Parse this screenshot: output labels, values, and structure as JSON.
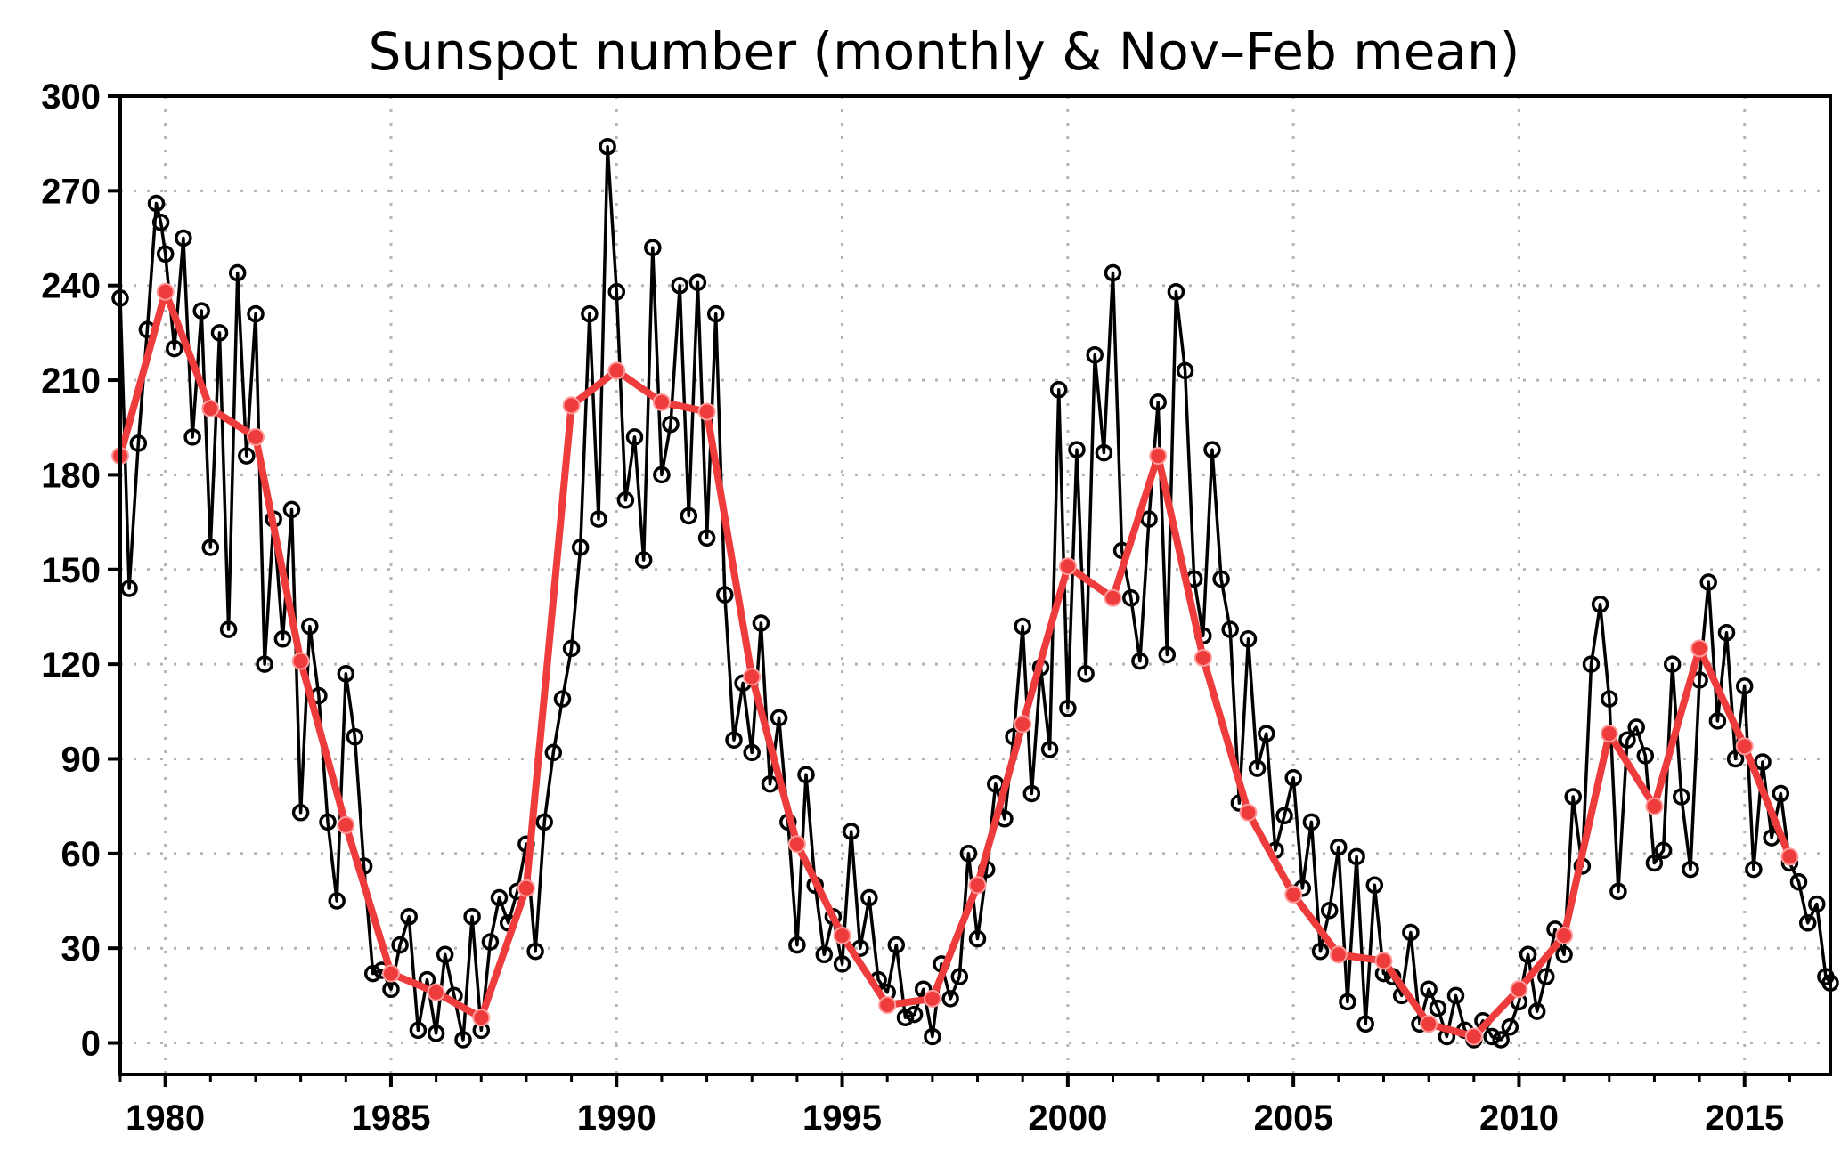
{
  "chart_data": {
    "type": "line",
    "title": "Sunspot number (monthly & Nov–Feb mean)",
    "xlabel": "",
    "ylabel": "",
    "xlim": [
      1979.0,
      2016.9
    ],
    "ylim": [
      -10,
      300
    ],
    "x_ticks": [
      1980,
      1985,
      1990,
      1995,
      2000,
      2005,
      2010,
      2015
    ],
    "x_tick_labels": [
      "1980",
      "1985",
      "1990",
      "1995",
      "2000",
      "2005",
      "2010",
      "2015"
    ],
    "y_ticks": [
      0,
      30,
      60,
      90,
      120,
      150,
      180,
      210,
      240,
      270,
      300
    ],
    "y_tick_labels": [
      "0",
      "30",
      "60",
      "90",
      "120",
      "150",
      "180",
      "210",
      "240",
      "270",
      "300"
    ],
    "grid": true,
    "series": [
      {
        "style": "thin black line with open circle markers",
        "color": "#000000",
        "points": [
          [
            1979.0,
            236
          ],
          [
            1979.2,
            144
          ],
          [
            1979.4,
            190
          ],
          [
            1979.6,
            226
          ],
          [
            1979.8,
            266
          ],
          [
            1979.9,
            260
          ],
          [
            1980.0,
            250
          ],
          [
            1980.2,
            220
          ],
          [
            1980.4,
            255
          ],
          [
            1980.6,
            192
          ],
          [
            1980.8,
            232
          ],
          [
            1981.0,
            157
          ],
          [
            1981.2,
            225
          ],
          [
            1981.4,
            131
          ],
          [
            1981.6,
            244
          ],
          [
            1981.8,
            186
          ],
          [
            1982.0,
            231
          ],
          [
            1982.2,
            120
          ],
          [
            1982.4,
            166
          ],
          [
            1982.6,
            128
          ],
          [
            1982.8,
            169
          ],
          [
            1983.0,
            73
          ],
          [
            1983.2,
            132
          ],
          [
            1983.4,
            110
          ],
          [
            1983.6,
            70
          ],
          [
            1983.8,
            45
          ],
          [
            1984.0,
            117
          ],
          [
            1984.2,
            97
          ],
          [
            1984.4,
            56
          ],
          [
            1984.6,
            22
          ],
          [
            1984.8,
            23
          ],
          [
            1985.0,
            17
          ],
          [
            1985.2,
            31
          ],
          [
            1985.4,
            40
          ],
          [
            1985.6,
            4
          ],
          [
            1985.8,
            20
          ],
          [
            1986.0,
            3
          ],
          [
            1986.2,
            28
          ],
          [
            1986.4,
            15
          ],
          [
            1986.6,
            1
          ],
          [
            1986.8,
            40
          ],
          [
            1987.0,
            4
          ],
          [
            1987.2,
            32
          ],
          [
            1987.4,
            46
          ],
          [
            1987.6,
            38
          ],
          [
            1987.8,
            48
          ],
          [
            1988.0,
            63
          ],
          [
            1988.2,
            29
          ],
          [
            1988.4,
            70
          ],
          [
            1988.6,
            92
          ],
          [
            1988.8,
            109
          ],
          [
            1989.0,
            125
          ],
          [
            1989.2,
            157
          ],
          [
            1989.4,
            231
          ],
          [
            1989.6,
            166
          ],
          [
            1989.8,
            284
          ],
          [
            1990.0,
            238
          ],
          [
            1990.2,
            172
          ],
          [
            1990.4,
            192
          ],
          [
            1990.6,
            153
          ],
          [
            1990.8,
            252
          ],
          [
            1991.0,
            180
          ],
          [
            1991.2,
            196
          ],
          [
            1991.4,
            240
          ],
          [
            1991.6,
            167
          ],
          [
            1991.8,
            241
          ],
          [
            1992.0,
            160
          ],
          [
            1992.2,
            231
          ],
          [
            1992.4,
            142
          ],
          [
            1992.6,
            96
          ],
          [
            1992.8,
            114
          ],
          [
            1993.0,
            92
          ],
          [
            1993.2,
            133
          ],
          [
            1993.4,
            82
          ],
          [
            1993.6,
            103
          ],
          [
            1993.8,
            70
          ],
          [
            1994.0,
            31
          ],
          [
            1994.2,
            85
          ],
          [
            1994.4,
            50
          ],
          [
            1994.6,
            28
          ],
          [
            1994.8,
            40
          ],
          [
            1995.0,
            25
          ],
          [
            1995.2,
            67
          ],
          [
            1995.4,
            30
          ],
          [
            1995.6,
            46
          ],
          [
            1995.8,
            20
          ],
          [
            1996.0,
            16
          ],
          [
            1996.2,
            31
          ],
          [
            1996.4,
            8
          ],
          [
            1996.6,
            9
          ],
          [
            1996.8,
            17
          ],
          [
            1997.0,
            2
          ],
          [
            1997.2,
            25
          ],
          [
            1997.4,
            14
          ],
          [
            1997.6,
            21
          ],
          [
            1997.8,
            60
          ],
          [
            1998.0,
            33
          ],
          [
            1998.2,
            55
          ],
          [
            1998.4,
            82
          ],
          [
            1998.6,
            71
          ],
          [
            1998.8,
            97
          ],
          [
            1999.0,
            132
          ],
          [
            1999.2,
            79
          ],
          [
            1999.4,
            119
          ],
          [
            1999.6,
            93
          ],
          [
            1999.8,
            207
          ],
          [
            2000.0,
            106
          ],
          [
            2000.2,
            188
          ],
          [
            2000.4,
            117
          ],
          [
            2000.6,
            218
          ],
          [
            2000.8,
            187
          ],
          [
            2001.0,
            244
          ],
          [
            2001.2,
            156
          ],
          [
            2001.4,
            141
          ],
          [
            2001.6,
            121
          ],
          [
            2001.8,
            166
          ],
          [
            2002.0,
            203
          ],
          [
            2002.2,
            123
          ],
          [
            2002.4,
            238
          ],
          [
            2002.6,
            213
          ],
          [
            2002.8,
            147
          ],
          [
            2003.0,
            129
          ],
          [
            2003.2,
            188
          ],
          [
            2003.4,
            147
          ],
          [
            2003.6,
            131
          ],
          [
            2003.8,
            76
          ],
          [
            2004.0,
            128
          ],
          [
            2004.2,
            87
          ],
          [
            2004.4,
            98
          ],
          [
            2004.6,
            61
          ],
          [
            2004.8,
            72
          ],
          [
            2005.0,
            84
          ],
          [
            2005.2,
            49
          ],
          [
            2005.4,
            70
          ],
          [
            2005.6,
            29
          ],
          [
            2005.8,
            42
          ],
          [
            2006.0,
            62
          ],
          [
            2006.2,
            13
          ],
          [
            2006.4,
            59
          ],
          [
            2006.6,
            6
          ],
          [
            2006.8,
            50
          ],
          [
            2007.0,
            22
          ],
          [
            2007.2,
            21
          ],
          [
            2007.4,
            15
          ],
          [
            2007.6,
            35
          ],
          [
            2007.8,
            6
          ],
          [
            2008.0,
            17
          ],
          [
            2008.2,
            11
          ],
          [
            2008.4,
            2
          ],
          [
            2008.6,
            15
          ],
          [
            2008.8,
            4
          ],
          [
            2009.0,
            1
          ],
          [
            2009.2,
            7
          ],
          [
            2009.4,
            2
          ],
          [
            2009.6,
            1
          ],
          [
            2009.8,
            5
          ],
          [
            2010.0,
            13
          ],
          [
            2010.2,
            28
          ],
          [
            2010.4,
            10
          ],
          [
            2010.6,
            21
          ],
          [
            2010.8,
            36
          ],
          [
            2011.0,
            28
          ],
          [
            2011.2,
            78
          ],
          [
            2011.4,
            56
          ],
          [
            2011.6,
            120
          ],
          [
            2011.8,
            139
          ],
          [
            2012.0,
            109
          ],
          [
            2012.2,
            48
          ],
          [
            2012.4,
            96
          ],
          [
            2012.6,
            100
          ],
          [
            2012.8,
            91
          ],
          [
            2013.0,
            57
          ],
          [
            2013.2,
            61
          ],
          [
            2013.4,
            120
          ],
          [
            2013.6,
            78
          ],
          [
            2013.8,
            55
          ],
          [
            2014.0,
            115
          ],
          [
            2014.2,
            146
          ],
          [
            2014.4,
            102
          ],
          [
            2014.6,
            130
          ],
          [
            2014.8,
            90
          ],
          [
            2015.0,
            113
          ],
          [
            2015.2,
            55
          ],
          [
            2015.4,
            89
          ],
          [
            2015.6,
            65
          ],
          [
            2015.8,
            79
          ],
          [
            2016.0,
            57
          ],
          [
            2016.2,
            51
          ],
          [
            2016.4,
            38
          ],
          [
            2016.6,
            44
          ],
          [
            2016.8,
            21
          ],
          [
            2016.9,
            19
          ]
        ]
      },
      {
        "style": "thick red line with filled circle markers",
        "color": "#ee3b3b",
        "x": [
          1979.0,
          1980.0,
          1981.0,
          1982.0,
          1983.0,
          1984.0,
          1985.0,
          1986.0,
          1987.0,
          1988.0,
          1989.0,
          1990.0,
          1991.0,
          1992.0,
          1993.0,
          1994.0,
          1995.0,
          1996.0,
          1997.0,
          1998.0,
          1999.0,
          2000.0,
          2001.0,
          2002.0,
          2003.0,
          2004.0,
          2005.0,
          2006.0,
          2007.0,
          2008.0,
          2009.0,
          2010.0,
          2011.0,
          2012.0,
          2013.0,
          2014.0,
          2015.0,
          2016.0
        ],
        "values": [
          186,
          238,
          201,
          192,
          121,
          69,
          22,
          16,
          8,
          49,
          202,
          213,
          203,
          200,
          116,
          63,
          34,
          12,
          14,
          50,
          101,
          151,
          141,
          186,
          122,
          73,
          47,
          28,
          26,
          6,
          2,
          17,
          34,
          98,
          75,
          125,
          94,
          59
        ]
      }
    ]
  }
}
